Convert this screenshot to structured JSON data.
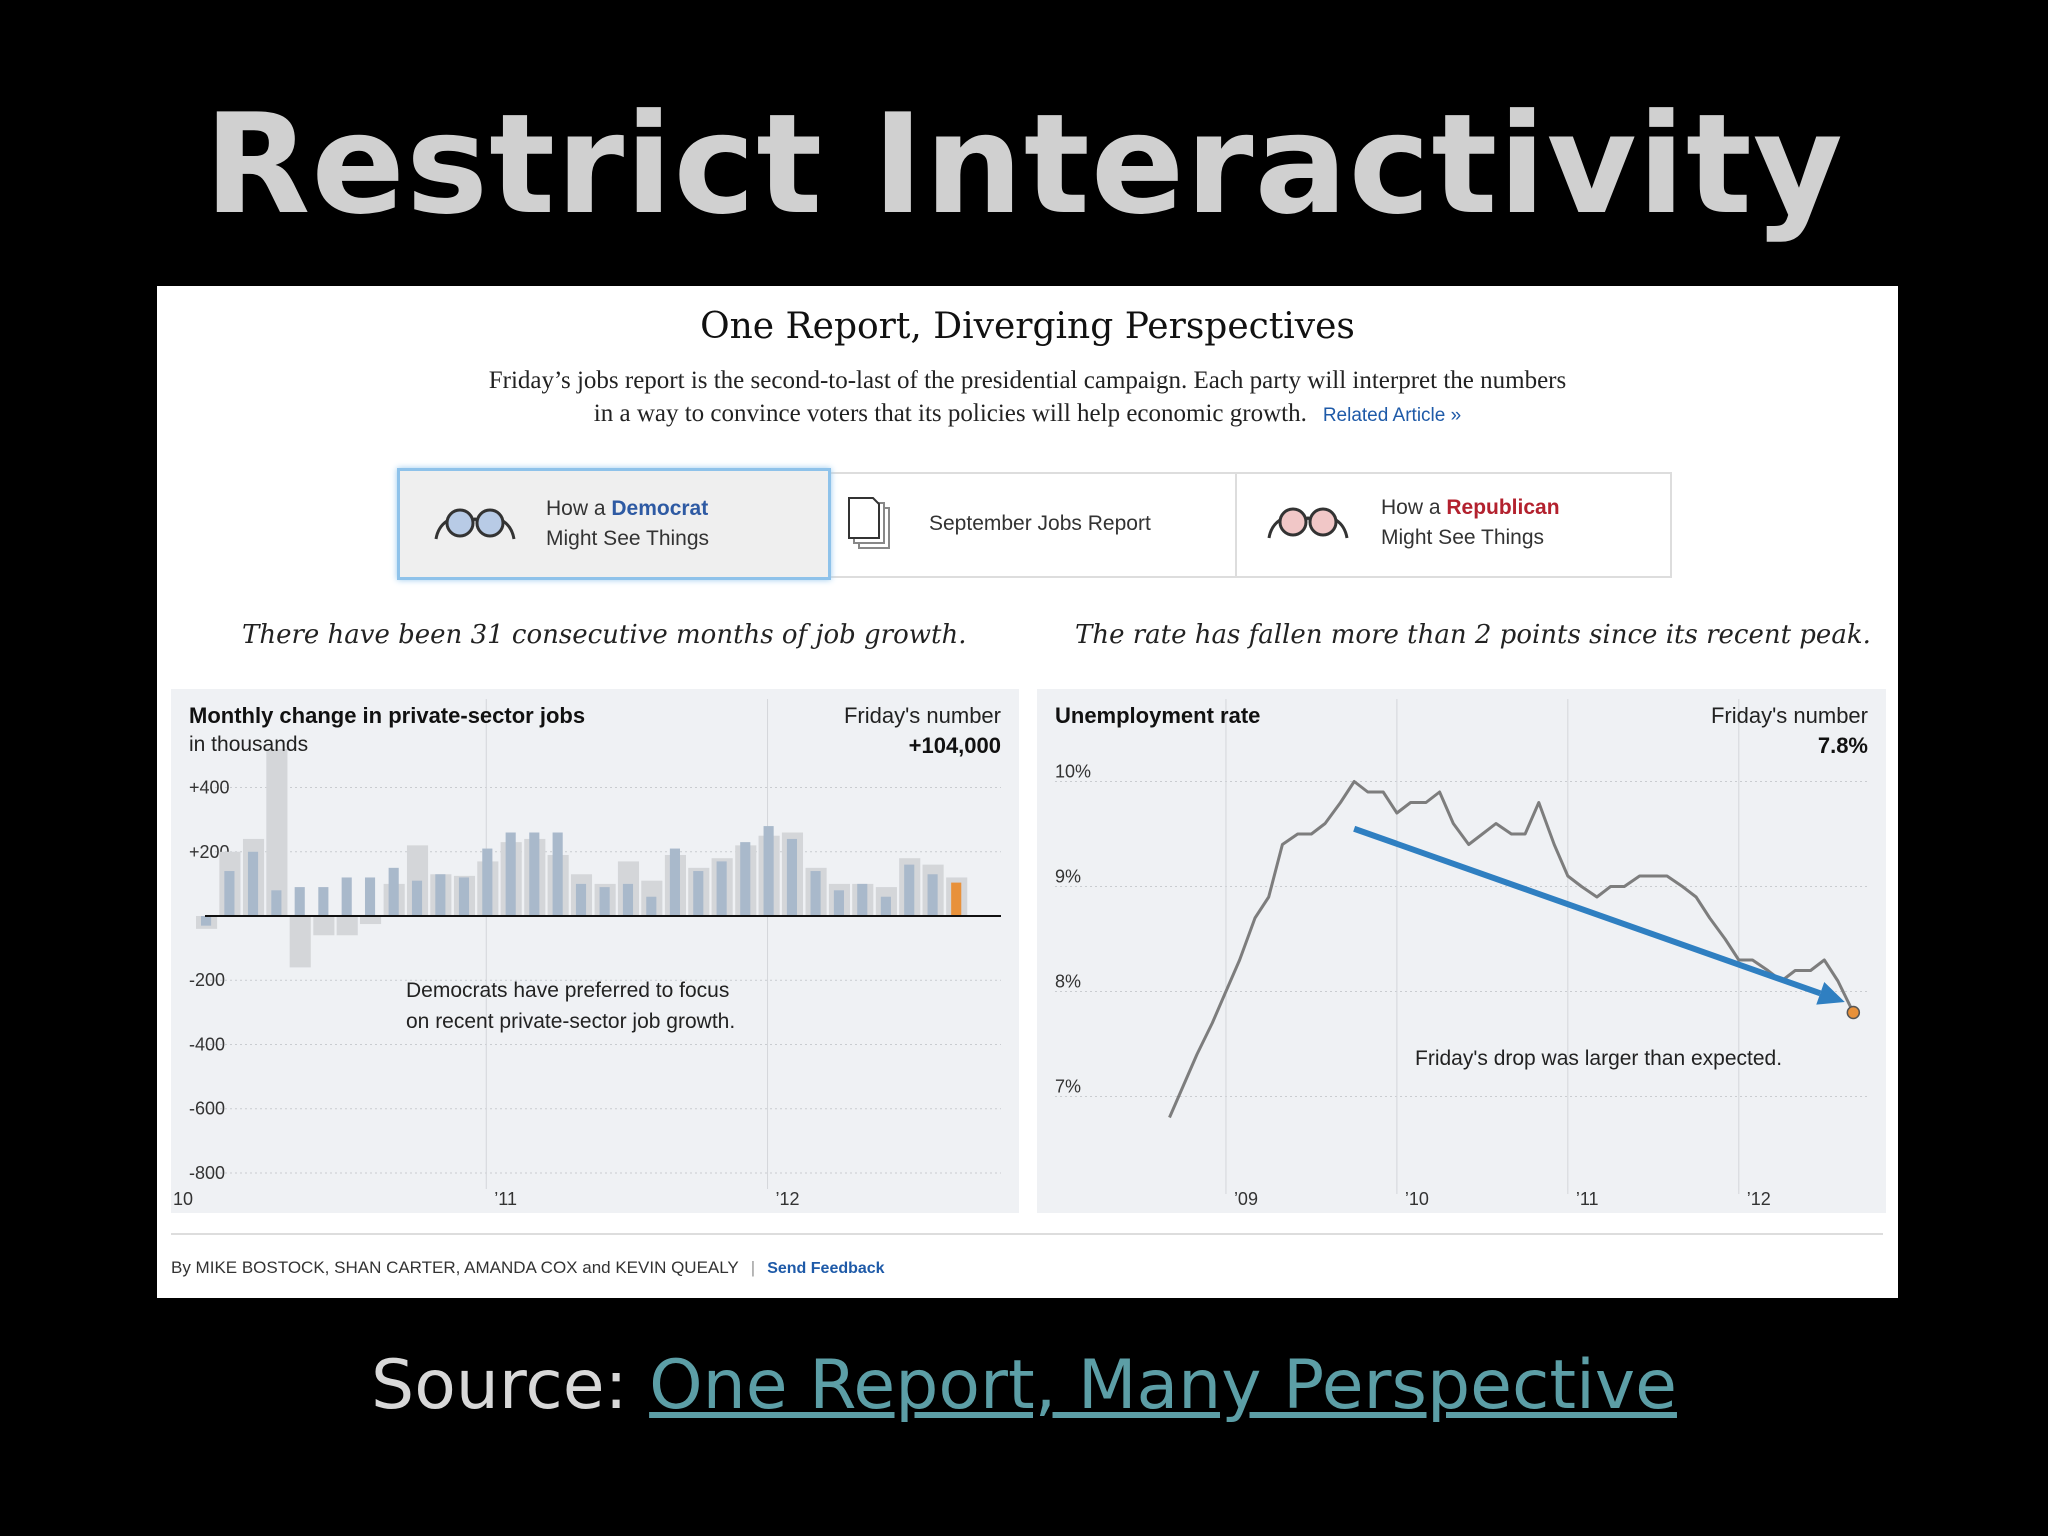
{
  "slide": {
    "title": "Restrict Interactivity",
    "source_label": "Source:",
    "source_link": "One Report, Many Perspective"
  },
  "graphic": {
    "title": "One Report, Diverging Perspectives",
    "intro_line1": "Friday’s jobs report is the second-to-last of the presidential campaign. Each party will interpret the numbers",
    "intro_line2": "in a way to convince voters that its policies will help economic growth.",
    "related_link": "Related Article »",
    "tabs": [
      {
        "pre": "How a ",
        "party": "Democrat",
        "line2": "Might See Things"
      },
      {
        "label": "September Jobs Report"
      },
      {
        "pre": "How a ",
        "party": "Republican",
        "line2": "Might See Things"
      }
    ],
    "left_subhead": "There have been 31 consecutive months of job growth.",
    "right_subhead": "The rate has fallen more than 2 points since its recent peak.",
    "credits": "By MIKE BOSTOCK, SHAN CARTER, AMANDA COX and KEVIN QUEALY",
    "credits_sep": "|",
    "feedback": "Send Feedback",
    "colors": {
      "democrat": "#2e5aa3",
      "republican": "#b3212e",
      "bar": "#a9b9cb",
      "bar_bg": "#d4d6d9",
      "friday_bar": "#e8913a",
      "arrow": "#2f7fc1",
      "line": "#7d7d7d"
    }
  },
  "chart_data": [
    {
      "type": "bar",
      "title": "Monthly change in private-sector jobs",
      "subtitle": "in thousands",
      "friday_label": "Friday's number",
      "friday_value": "+104,000",
      "annotation_line1": "Democrats have preferred to focus",
      "annotation_line2": "on recent private-sector job growth.",
      "ylim": [
        -850,
        520
      ],
      "yticks": [
        400,
        200,
        -200,
        -400,
        -600,
        -800
      ],
      "ytick_labels": [
        "+400",
        "+200",
        "-200",
        "-400",
        "-600",
        "-800"
      ],
      "xlim": [
        2010.0,
        2012.83
      ],
      "xticks": [
        2010.0,
        2011.0,
        2012.0
      ],
      "xtick_labels": [
        "10",
        "’11",
        "’12"
      ],
      "x": [
        2010.0,
        2010.083,
        2010.167,
        2010.25,
        2010.333,
        2010.417,
        2010.5,
        2010.583,
        2010.667,
        2010.75,
        2010.833,
        2010.917,
        2011.0,
        2011.083,
        2011.167,
        2011.25,
        2011.333,
        2011.417,
        2011.5,
        2011.583,
        2011.667,
        2011.75,
        2011.833,
        2011.917,
        2012.0,
        2012.083,
        2012.167,
        2012.25,
        2012.333,
        2012.417,
        2012.5,
        2012.583,
        2012.667
      ],
      "values": [
        -30,
        140,
        200,
        80,
        90,
        90,
        120,
        120,
        150,
        110,
        130,
        120,
        210,
        260,
        260,
        260,
        100,
        90,
        100,
        60,
        210,
        140,
        170,
        230,
        280,
        240,
        140,
        80,
        100,
        60,
        160,
        130,
        104
      ],
      "background_values": [
        -40,
        200,
        240,
        520,
        -160,
        -60,
        -60,
        -25,
        100,
        220,
        130,
        125,
        170,
        230,
        240,
        190,
        130,
        100,
        170,
        110,
        190,
        150,
        180,
        220,
        250,
        260,
        150,
        100,
        100,
        90,
        180,
        160,
        120
      ]
    },
    {
      "type": "line",
      "title": "Unemployment rate",
      "friday_label": "Friday's number",
      "friday_value": "7.8%",
      "annotation": "Friday's drop was larger than expected.",
      "ylim": [
        6.5,
        10.5
      ],
      "yticks": [
        10,
        9,
        8,
        7
      ],
      "ytick_labels": [
        "10%",
        "9%",
        "8%",
        "7%"
      ],
      "xlim": [
        2008.0,
        2012.75
      ],
      "xticks": [
        2009.0,
        2010.0,
        2011.0,
        2012.0
      ],
      "xtick_labels": [
        "’09",
        "’10",
        "’11",
        "’12"
      ],
      "x": [
        2008.67,
        2008.75,
        2008.83,
        2008.92,
        2009.0,
        2009.08,
        2009.17,
        2009.25,
        2009.33,
        2009.42,
        2009.5,
        2009.58,
        2009.67,
        2009.75,
        2009.83,
        2009.92,
        2010.0,
        2010.08,
        2010.17,
        2010.25,
        2010.33,
        2010.42,
        2010.5,
        2010.58,
        2010.67,
        2010.75,
        2010.83,
        2010.92,
        2011.0,
        2011.08,
        2011.17,
        2011.25,
        2011.33,
        2011.42,
        2011.5,
        2011.58,
        2011.67,
        2011.75,
        2011.83,
        2011.92,
        2012.0,
        2012.08,
        2012.17,
        2012.25,
        2012.33,
        2012.42,
        2012.5,
        2012.58,
        2012.67
      ],
      "values": [
        6.8,
        7.1,
        7.4,
        7.7,
        8.0,
        8.3,
        8.7,
        8.9,
        9.4,
        9.5,
        9.5,
        9.6,
        9.8,
        10.0,
        9.9,
        9.9,
        9.7,
        9.8,
        9.8,
        9.9,
        9.6,
        9.4,
        9.5,
        9.6,
        9.5,
        9.5,
        9.8,
        9.4,
        9.1,
        9.0,
        8.9,
        9.0,
        9.0,
        9.1,
        9.1,
        9.1,
        9.0,
        8.9,
        8.7,
        8.5,
        8.3,
        8.3,
        8.2,
        8.1,
        8.2,
        8.2,
        8.3,
        8.1,
        7.8
      ],
      "arrow_from": [
        2009.75,
        9.55
      ],
      "arrow_to": [
        2012.62,
        7.9
      ]
    }
  ]
}
